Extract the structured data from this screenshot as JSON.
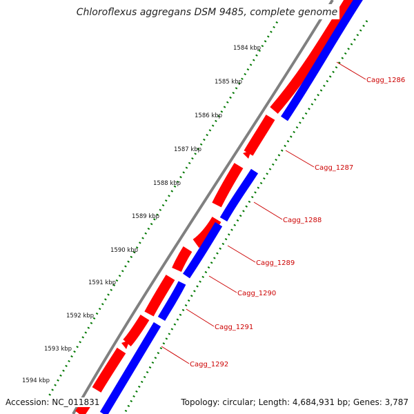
{
  "title": "Chloroflexus aggregans DSM 9485, complete genome",
  "accession_text": "Accession: NC_011831",
  "topology_text": "Topology: circular; Length: 4,684,931 bp; Genes: 3,787",
  "colors": {
    "backbone": "#808080",
    "forward": "#ff0000",
    "reverse": "#0000ff",
    "ticks": "#007700",
    "label": "#cc0000"
  },
  "kbp_ticks": [
    "1584 kbp",
    "1585 kbp",
    "1586 kbp",
    "1587 kbp",
    "1588 kbp",
    "1589 kbp",
    "1590 kbp",
    "1591 kbp",
    "1592 kbp",
    "1593 kbp",
    "1594 kbp"
  ],
  "gene_labels": [
    "Cagg_1286",
    "Cagg_1287",
    "Cagg_1288",
    "Cagg_1289",
    "Cagg_1290",
    "Cagg_1291",
    "Cagg_1292"
  ]
}
